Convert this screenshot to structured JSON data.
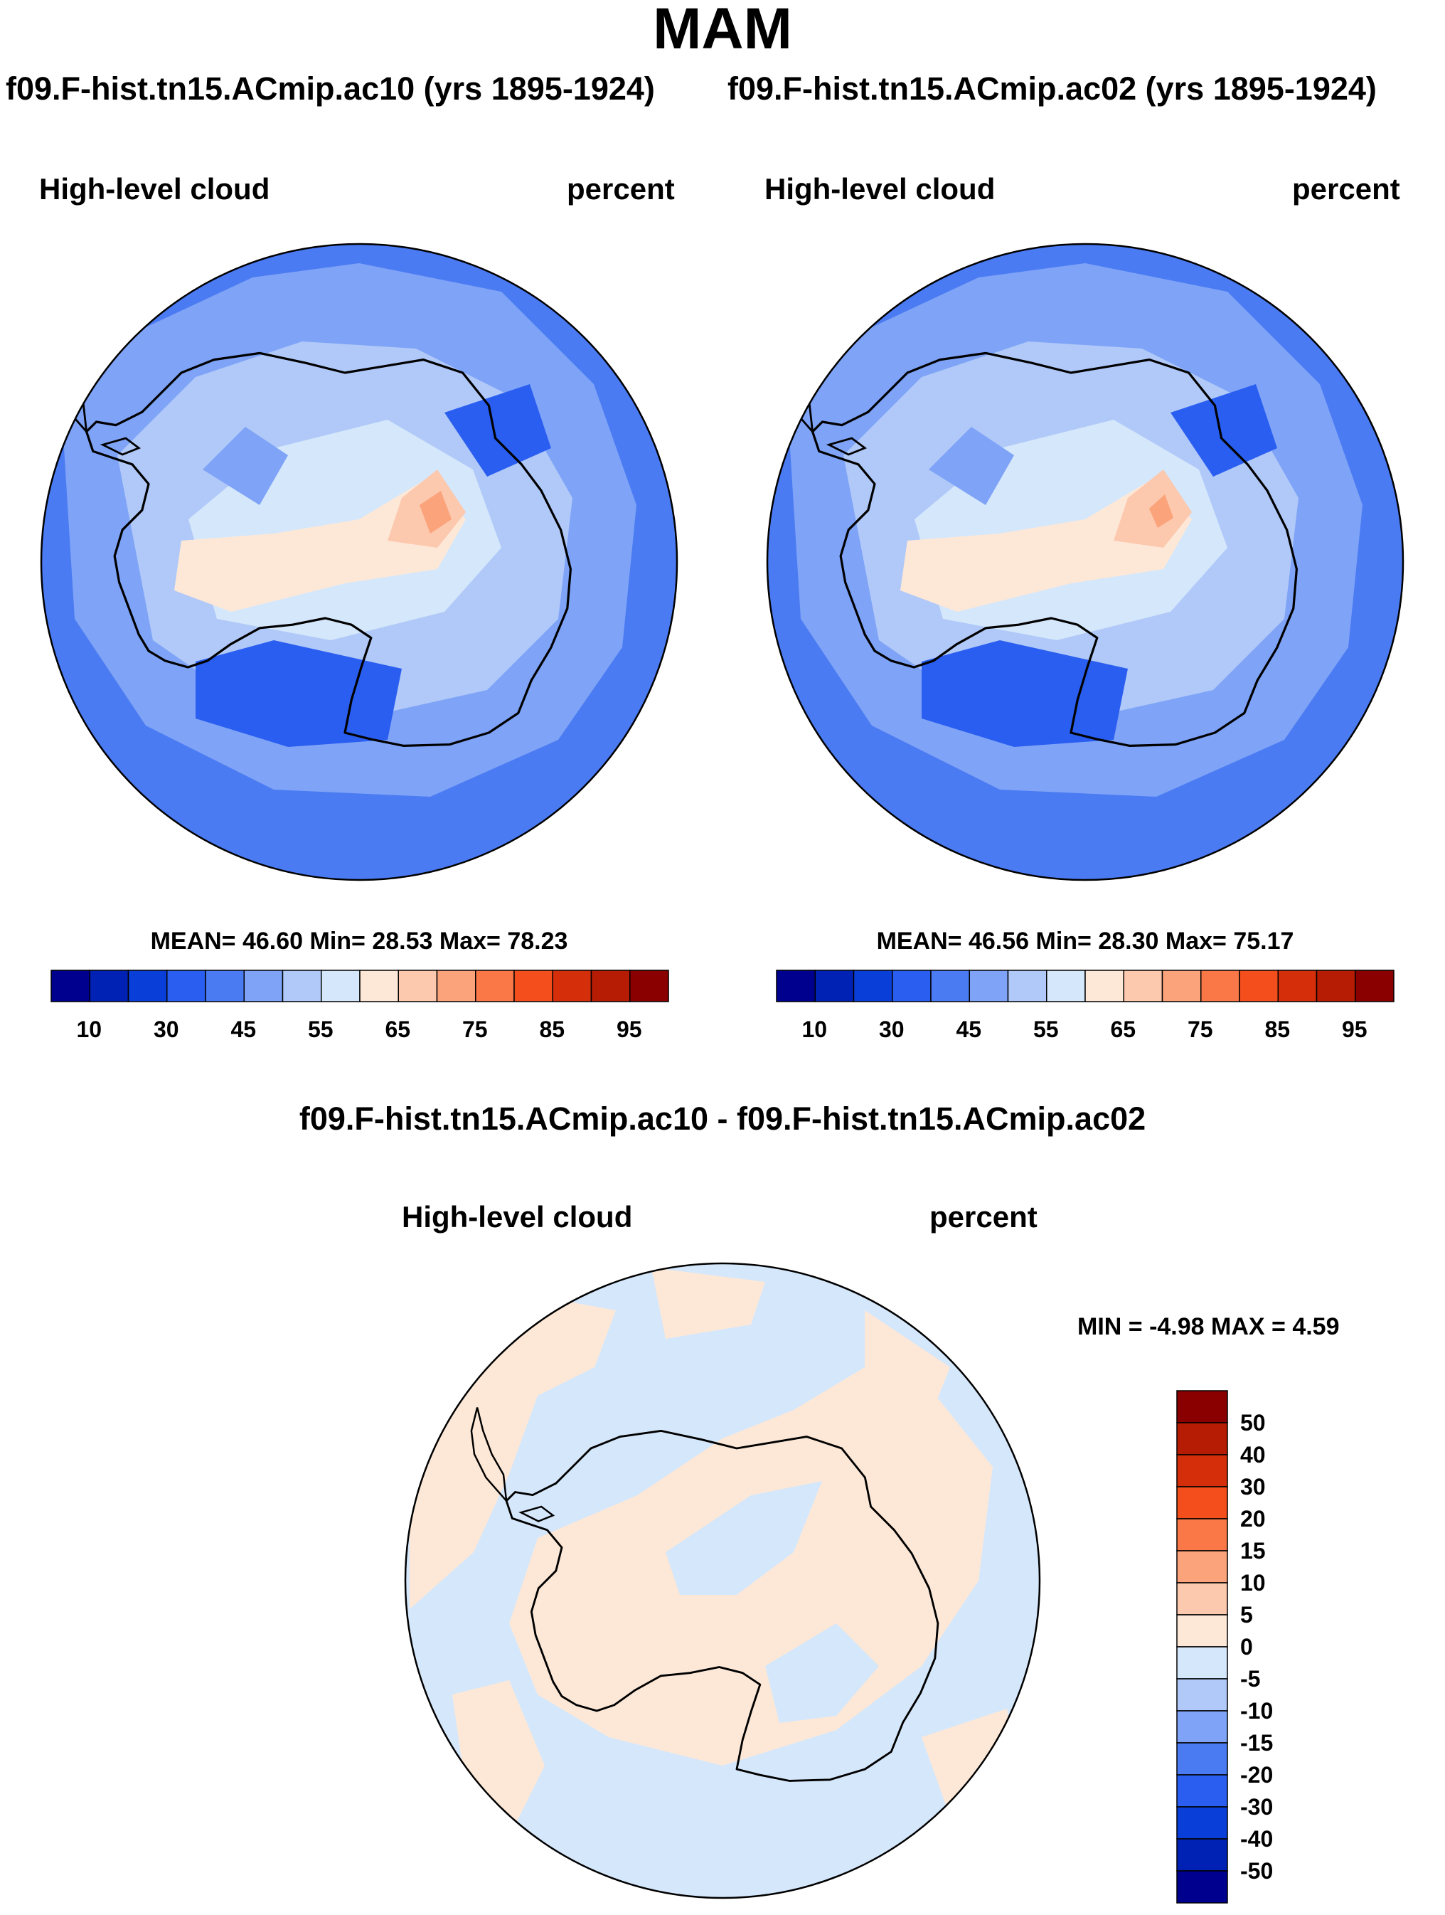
{
  "main_title": "MAM",
  "run_a_title": "f09.F-hist.tn15.ACmip.ac10 (yrs 1895-1924)",
  "run_b_title": "f09.F-hist.tn15.ACmip.ac02 (yrs 1895-1924)",
  "diff_title": "f09.F-hist.tn15.ACmip.ac10 - f09.F-hist.tn15.ACmip.ac02",
  "panels": [
    {
      "variable": "High-level cloud",
      "units": "percent",
      "stats": "MEAN=  46.60  Min=  28.53  Max=  78.23"
    },
    {
      "variable": "High-level cloud",
      "units": "percent",
      "stats": "MEAN=  46.56  Min=  28.30  Max=  75.17"
    }
  ],
  "diff_panel": {
    "variable": "High-level cloud",
    "units": "percent",
    "stats": "MIN =  -4.98 MAX =   4.59"
  },
  "main_colorbar": {
    "colors": [
      "#00008f",
      "#0022b4",
      "#0a3ed8",
      "#2a5ef0",
      "#4b7bf2",
      "#7ea3f7",
      "#b0c9f8",
      "#d5e7fb",
      "#fde8d7",
      "#fcc8ae",
      "#fba37a",
      "#fa7848",
      "#f44e1c",
      "#d42e0a",
      "#b51c03",
      "#8a0000"
    ],
    "ticks": [
      "10",
      "30",
      "45",
      "55",
      "65",
      "75",
      "85",
      "95"
    ]
  },
  "diff_colorbar": {
    "colors": [
      "#8a0000",
      "#b51c03",
      "#d42e0a",
      "#f44e1c",
      "#fa7848",
      "#fba37a",
      "#fcc8ae",
      "#fde8d7",
      "#d5e7fb",
      "#b0c9f8",
      "#7ea3f7",
      "#4b7bf2",
      "#2a5ef0",
      "#0a3ed8",
      "#0022b4",
      "#00008f"
    ],
    "ticks": [
      "50",
      "40",
      "30",
      "20",
      "15",
      "10",
      "5",
      "0",
      "-5",
      "-10",
      "-15",
      "-20",
      "-30",
      "-40",
      "-50"
    ]
  }
}
